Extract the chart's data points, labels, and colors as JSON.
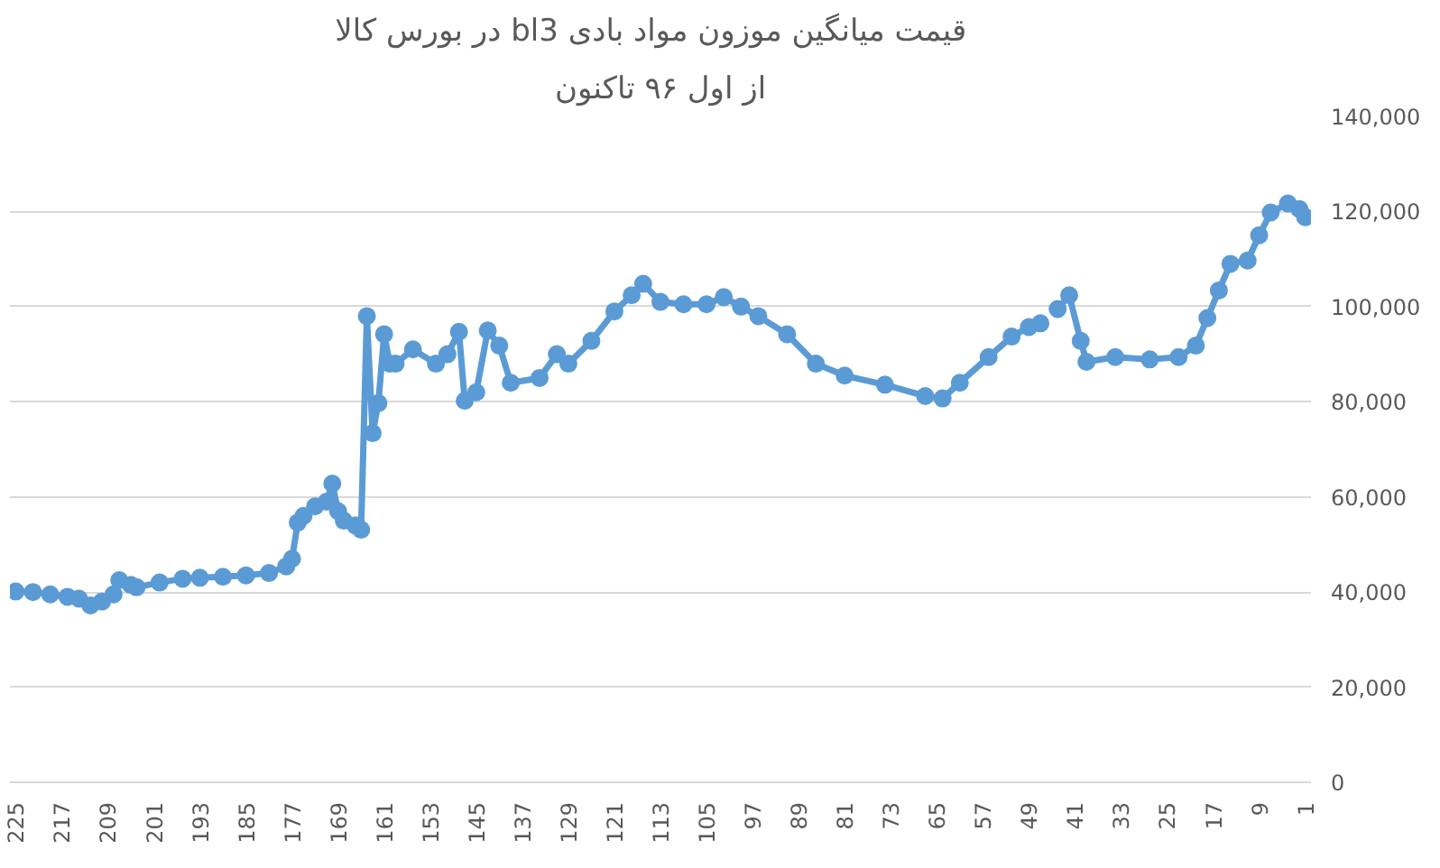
{
  "chart_data": {
    "type": "line",
    "title": "قیمت میانگین موزون مواد بادی  bl3  در بورس کالا",
    "subtitle": "از اول ۹۶ تاکنون",
    "x": [
      225,
      222,
      219,
      216,
      214,
      212,
      210,
      208,
      207,
      205,
      204,
      200,
      196,
      193,
      189,
      185,
      181,
      178,
      177,
      176,
      175,
      173,
      171,
      170,
      169,
      168,
      166,
      165,
      164,
      163,
      162,
      161,
      160,
      159,
      156,
      152,
      150,
      148,
      147,
      145,
      143,
      141,
      139,
      134,
      131,
      129,
      125,
      121,
      118,
      116,
      113,
      109,
      105,
      102,
      99,
      96,
      91,
      86,
      81,
      74,
      67,
      64,
      61,
      56,
      52,
      49,
      47,
      45,
      44,
      42,
      40,
      39,
      34,
      28,
      23,
      20,
      18,
      16,
      14,
      11,
      9,
      7,
      4,
      2,
      1
    ],
    "series": [
      {
        "color": "#5b9bd5",
        "values": [
          40100,
          40000,
          39500,
          39000,
          38600,
          37200,
          38000,
          39500,
          42500,
          41500,
          41000,
          42000,
          42800,
          43000,
          43200,
          43500,
          44000,
          45400,
          47000,
          54600,
          56000,
          58000,
          59000,
          62800,
          57000,
          55000,
          54000,
          53100,
          98000,
          73400,
          79700,
          94200,
          88000,
          88000,
          91000,
          88000,
          90000,
          94700,
          80200,
          82000,
          95000,
          91800,
          84000,
          85000,
          90000,
          88000,
          92800,
          99000,
          102400,
          104800,
          101000,
          100500,
          100500,
          102000,
          100000,
          98000,
          94200,
          88000,
          85500,
          83600,
          81200,
          80700,
          84000,
          89400,
          93700,
          95700,
          96500,
          null,
          99500,
          102400,
          92800,
          88400,
          89400,
          88900,
          89400,
          91800,
          97600,
          103400,
          109000,
          109700,
          115000,
          119800,
          121700,
          120500,
          118800
        ]
      }
    ],
    "xlim": [
      226,
      0
    ],
    "xticks": [
      225,
      217,
      209,
      201,
      193,
      185,
      177,
      169,
      161,
      153,
      145,
      137,
      129,
      121,
      113,
      105,
      97,
      89,
      81,
      73,
      65,
      57,
      49,
      41,
      33,
      25,
      17,
      9,
      1
    ],
    "ylim": [
      0,
      140000
    ],
    "yticks": [
      {
        "value": 0,
        "label": "0"
      },
      {
        "value": 20000,
        "label": "20,000"
      },
      {
        "value": 40000,
        "label": "40,000"
      },
      {
        "value": 60000,
        "label": "60,000"
      },
      {
        "value": 80000,
        "label": "80,000"
      },
      {
        "value": 100000,
        "label": "100,000"
      },
      {
        "value": 120000,
        "label": "120,000"
      },
      {
        "value": 140000,
        "label": "140,000"
      }
    ],
    "grid": "y",
    "marker": "circle",
    "line_style": "solid"
  }
}
